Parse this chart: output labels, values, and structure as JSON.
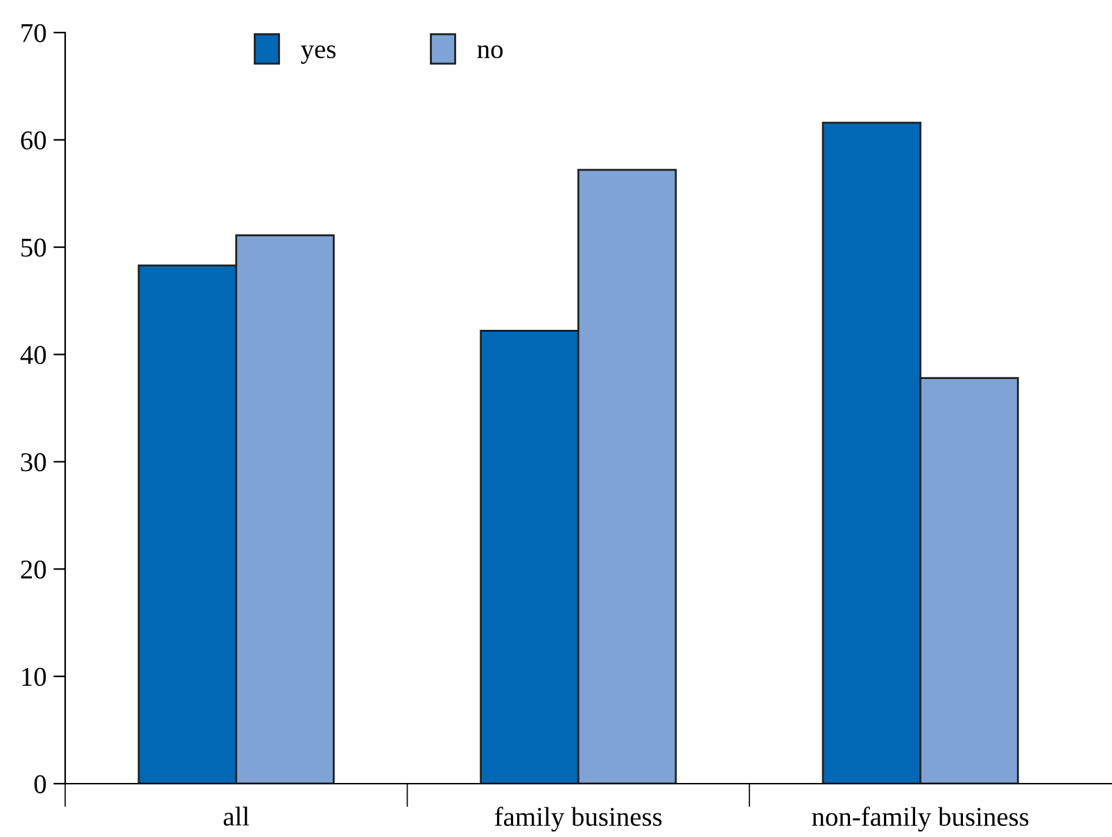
{
  "chart_data": {
    "type": "bar",
    "categories": [
      "all",
      "family business",
      "non-family business"
    ],
    "series": [
      {
        "name": "yes",
        "color": "#0068b5",
        "values": [
          48.3,
          42.2,
          61.6
        ]
      },
      {
        "name": "no",
        "color": "#7fa3d5",
        "values": [
          51.1,
          57.2,
          37.8
        ]
      }
    ],
    "ylim": [
      0,
      70
    ],
    "yticks": [
      0,
      10,
      20,
      30,
      40,
      50,
      60,
      70
    ],
    "grid": false,
    "legend": "top"
  }
}
